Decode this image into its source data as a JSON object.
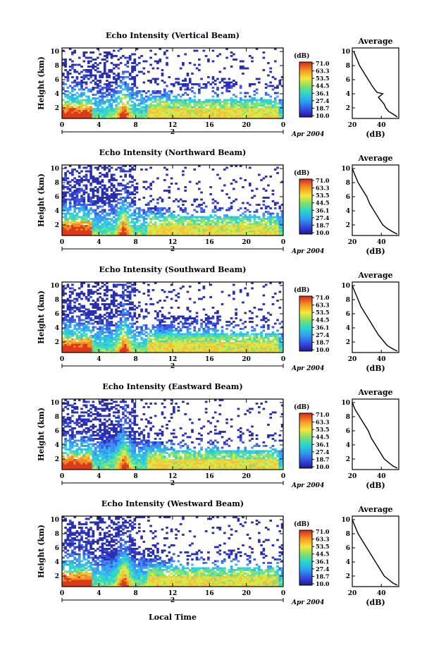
{
  "figure": {
    "xlabel": "Local Time",
    "date_label": "Apr 2004",
    "day_label": "2",
    "ylabel": "Height (km)",
    "colorbar_unit": "(dB)",
    "colorbar_ticks": [
      "71.0",
      "63.3",
      "53.5",
      "44.5",
      "36.1",
      "27.4",
      "18.7",
      "10.0"
    ],
    "avg_title": "Average",
    "avg_xlabel": "(dB)"
  },
  "chart_data": [
    {
      "type": "heatmap",
      "title": "Echo Intensity (Vertical Beam)",
      "xlabel": "",
      "ylabel": "Height (km)",
      "x_ticks": [
        "0",
        "4",
        "8",
        "12",
        "16",
        "20",
        "0"
      ],
      "y_ticks": [
        "10",
        "8",
        "6",
        "4",
        "2"
      ],
      "xlim": [
        0,
        24
      ],
      "ylim": [
        0.5,
        10.5
      ],
      "colorbar": {
        "label": "(dB)",
        "range": [
          10.0,
          71.0
        ],
        "ticks": [
          71.0,
          63.3,
          53.5,
          44.5,
          36.1,
          27.4,
          18.7,
          10.0
        ]
      },
      "average_profile": {
        "title": "Average",
        "xlabel": "(dB)",
        "x_ticks": [
          "20",
          "40"
        ],
        "xlim": [
          20,
          52
        ],
        "height_km": [
          10.0,
          9.0,
          8.0,
          7.0,
          6.0,
          5.0,
          4.2,
          4.0,
          3.5,
          3.0,
          2.5,
          2.0,
          1.5,
          1.0,
          0.7
        ],
        "value_db": [
          21,
          23,
          25,
          28,
          31,
          34,
          37,
          41,
          38,
          40,
          42,
          43,
          45,
          49,
          51
        ]
      }
    },
    {
      "type": "heatmap",
      "title": "Echo Intensity (Northward Beam)",
      "xlabel": "",
      "ylabel": "Height (km)",
      "x_ticks": [
        "0",
        "4",
        "8",
        "12",
        "16",
        "20",
        "0"
      ],
      "y_ticks": [
        "10",
        "8",
        "6",
        "4",
        "2"
      ],
      "xlim": [
        0,
        24
      ],
      "ylim": [
        0.5,
        10.5
      ],
      "colorbar": {
        "label": "(dB)",
        "range": [
          10.0,
          71.0
        ],
        "ticks": [
          71.0,
          63.3,
          53.5,
          44.5,
          36.1,
          27.4,
          18.7,
          10.0
        ]
      },
      "average_profile": {
        "title": "Average",
        "xlabel": "(dB)",
        "x_ticks": [
          "20",
          "40"
        ],
        "xlim": [
          20,
          52
        ],
        "height_km": [
          10.0,
          9.0,
          8.0,
          7.0,
          6.0,
          5.0,
          4.0,
          3.0,
          2.0,
          1.5,
          1.0,
          0.7
        ],
        "value_db": [
          20,
          22,
          24,
          27,
          30,
          32,
          35,
          38,
          41,
          44,
          48,
          51
        ]
      }
    },
    {
      "type": "heatmap",
      "title": "Echo Intensity (Southward Beam)",
      "xlabel": "",
      "ylabel": "Height (km)",
      "x_ticks": [
        "0",
        "4",
        "8",
        "12",
        "16",
        "20",
        "0"
      ],
      "y_ticks": [
        "10",
        "8",
        "6",
        "4",
        "2"
      ],
      "xlim": [
        0,
        24
      ],
      "ylim": [
        0.5,
        10.5
      ],
      "colorbar": {
        "label": "(dB)",
        "range": [
          10.0,
          71.0
        ],
        "ticks": [
          71.0,
          63.3,
          53.5,
          44.5,
          36.1,
          27.4,
          18.7,
          10.0
        ]
      },
      "average_profile": {
        "title": "Average",
        "xlabel": "(dB)",
        "x_ticks": [
          "20",
          "40"
        ],
        "xlim": [
          20,
          52
        ],
        "height_km": [
          10.0,
          9.0,
          8.0,
          7.0,
          6.0,
          5.0,
          4.0,
          3.0,
          2.0,
          1.5,
          1.0,
          0.7
        ],
        "value_db": [
          20,
          22,
          24,
          26,
          29,
          32,
          35,
          38,
          42,
          44,
          48,
          51
        ]
      }
    },
    {
      "type": "heatmap",
      "title": "Echo Intensity (Eastward Beam)",
      "xlabel": "",
      "ylabel": "Height (km)",
      "x_ticks": [
        "0",
        "4",
        "8",
        "12",
        "16",
        "20",
        "0"
      ],
      "y_ticks": [
        "10",
        "8",
        "6",
        "4",
        "2"
      ],
      "xlim": [
        0,
        24
      ],
      "ylim": [
        0.5,
        10.5
      ],
      "colorbar": {
        "label": "(dB)",
        "range": [
          10.0,
          71.0
        ],
        "ticks": [
          71.0,
          63.3,
          53.5,
          44.5,
          36.1,
          27.4,
          18.7,
          10.0
        ]
      },
      "average_profile": {
        "title": "Average",
        "xlabel": "(dB)",
        "x_ticks": [
          "20",
          "40"
        ],
        "xlim": [
          20,
          52
        ],
        "height_km": [
          10.0,
          9.0,
          8.0,
          7.0,
          6.0,
          5.0,
          4.0,
          3.0,
          2.0,
          1.5,
          1.0,
          0.7
        ],
        "value_db": [
          20,
          22,
          25,
          28,
          31,
          33,
          36,
          39,
          42,
          45,
          48,
          51
        ]
      }
    },
    {
      "type": "heatmap",
      "title": "Echo Intensity (Westward Beam)",
      "xlabel": "Local Time",
      "ylabel": "Height (km)",
      "x_ticks": [
        "0",
        "4",
        "8",
        "12",
        "16",
        "20",
        "0"
      ],
      "y_ticks": [
        "10",
        "8",
        "6",
        "4",
        "2"
      ],
      "xlim": [
        0,
        24
      ],
      "ylim": [
        0.5,
        10.5
      ],
      "colorbar": {
        "label": "(dB)",
        "range": [
          10.0,
          71.0
        ],
        "ticks": [
          71.0,
          63.3,
          53.5,
          44.5,
          36.1,
          27.4,
          18.7,
          10.0
        ]
      },
      "average_profile": {
        "title": "Average",
        "xlabel": "(dB)",
        "x_ticks": [
          "20",
          "40"
        ],
        "xlim": [
          20,
          52
        ],
        "height_km": [
          10.0,
          9.0,
          8.0,
          7.0,
          6.0,
          5.0,
          4.0,
          3.0,
          2.0,
          1.5,
          1.0,
          0.7
        ],
        "value_db": [
          20,
          22,
          24,
          27,
          30,
          33,
          36,
          39,
          42,
          45,
          48,
          51
        ]
      }
    }
  ]
}
